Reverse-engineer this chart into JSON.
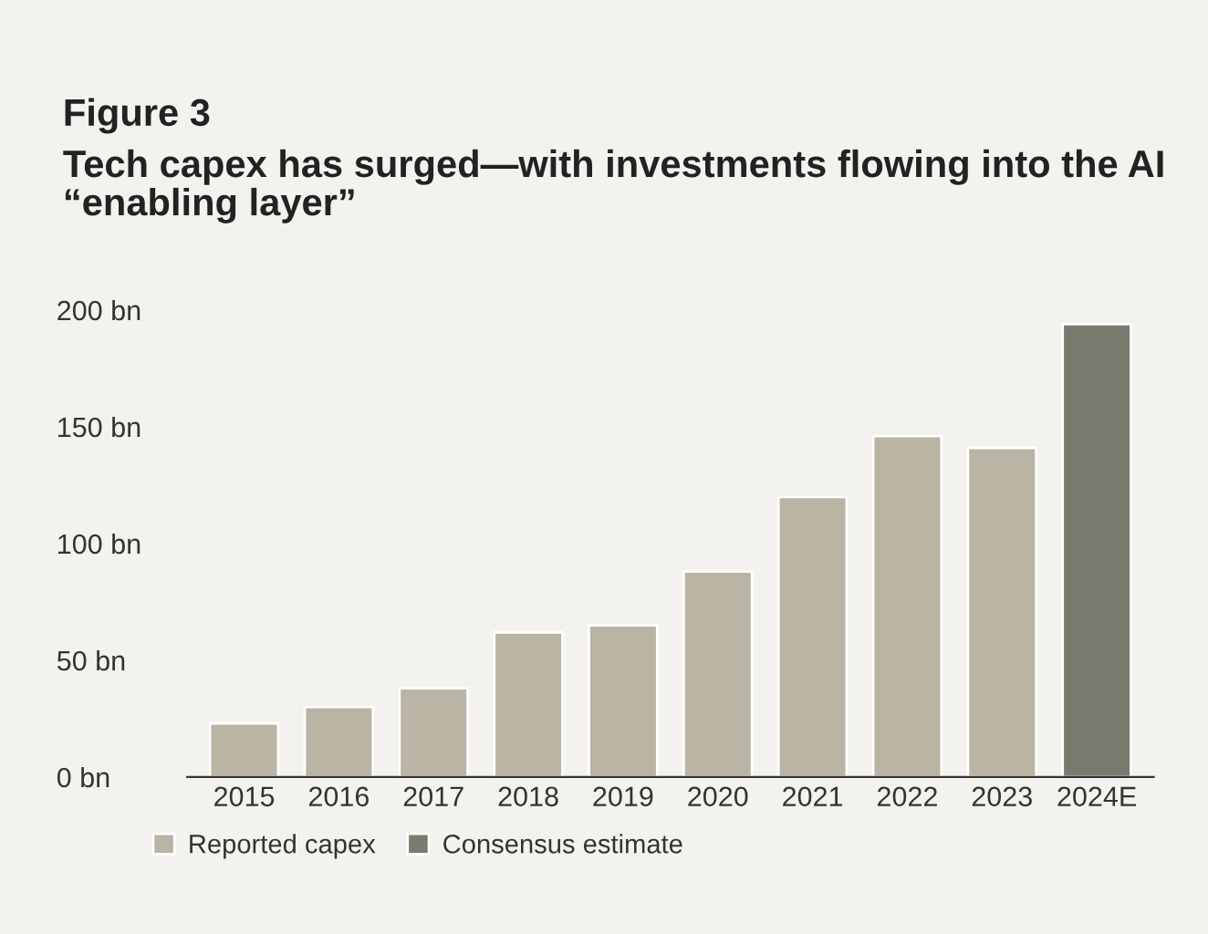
{
  "chart_data": {
    "type": "bar",
    "title": "Figure 3",
    "subtitle": "Tech capex has surged—with investments flowing into the AI “enabling layer”",
    "categories": [
      "2015",
      "2016",
      "2017",
      "2018",
      "2019",
      "2020",
      "2021",
      "2022",
      "2023",
      "2024E"
    ],
    "series": [
      {
        "name": "Reported capex",
        "color": "#b9b4a3",
        "values": [
          23,
          30,
          38,
          62,
          65,
          88,
          120,
          146,
          141,
          null
        ]
      },
      {
        "name": "Consensus estimate",
        "color": "#7b7a6e",
        "values": [
          null,
          null,
          null,
          null,
          null,
          null,
          null,
          null,
          null,
          194
        ]
      }
    ],
    "ylim": [
      0,
      200
    ],
    "yticks": [
      {
        "value": 0,
        "label": "0 bn"
      },
      {
        "value": 50,
        "label": "50 bn"
      },
      {
        "value": 100,
        "label": "100 bn"
      },
      {
        "value": 150,
        "label": "150 bn"
      },
      {
        "value": 200,
        "label": "200 bn"
      }
    ],
    "grid": false,
    "legend": "bottom left"
  }
}
